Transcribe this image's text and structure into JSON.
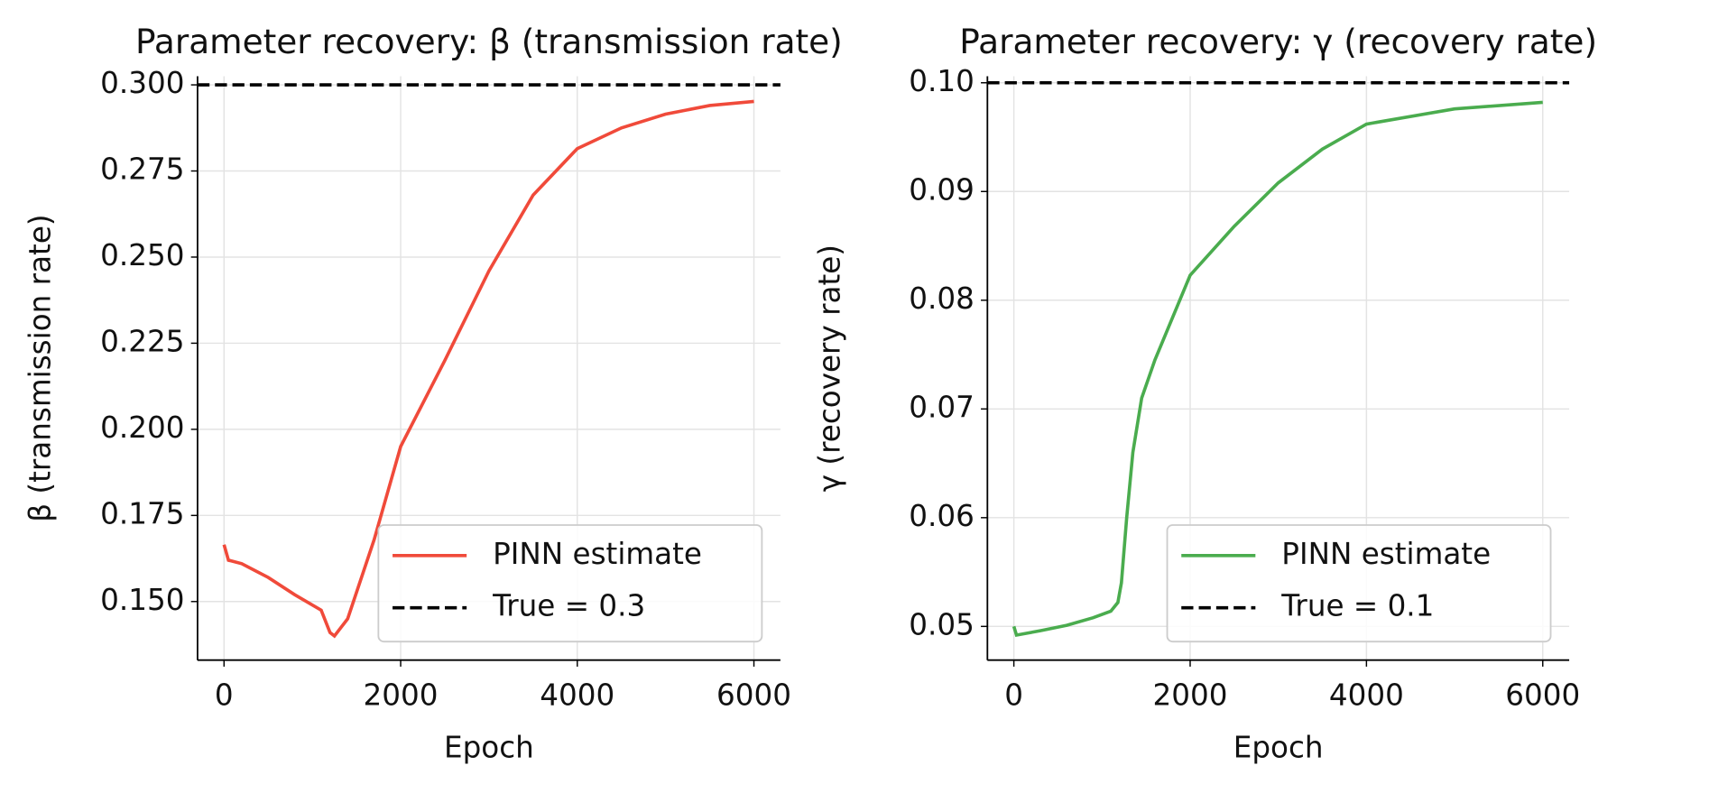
{
  "chart_data": [
    {
      "type": "line",
      "title": "Parameter recovery: β (transmission rate)",
      "x_label": "Epoch",
      "y_label": "β (transmission rate)",
      "xlim": [
        -300,
        6300
      ],
      "ylim": [
        0.133,
        0.3025
      ],
      "xticks": [
        0,
        2000,
        4000,
        6000
      ],
      "yticks": [
        {
          "value": 0.15,
          "label": "0.150"
        },
        {
          "value": 0.175,
          "label": "0.175"
        },
        {
          "value": 0.2,
          "label": "0.200"
        },
        {
          "value": 0.225,
          "label": "0.225"
        },
        {
          "value": 0.25,
          "label": "0.250"
        },
        {
          "value": 0.275,
          "label": "0.275"
        },
        {
          "value": 0.3,
          "label": "0.300"
        }
      ],
      "grid": true,
      "legend": "lower right",
      "series": [
        {
          "name": "PINN estimate",
          "color": "#f04a3a",
          "x": [
            0,
            50,
            200,
            500,
            800,
            1100,
            1200,
            1250,
            1400,
            1700,
            2000,
            2500,
            3000,
            3500,
            4000,
            4500,
            5000,
            5500,
            6000
          ],
          "values": [
            0.1665,
            0.162,
            0.161,
            0.157,
            0.152,
            0.1475,
            0.141,
            0.14,
            0.145,
            0.168,
            0.195,
            0.22,
            0.246,
            0.268,
            0.2815,
            0.2875,
            0.2915,
            0.294,
            0.2952
          ]
        }
      ],
      "reference_line": {
        "label": "True = 0.3",
        "value": 0.3,
        "color": "#000000"
      }
    },
    {
      "type": "line",
      "title": "Parameter recovery: γ (recovery rate)",
      "x_label": "Epoch",
      "y_label": "γ (recovery rate)",
      "xlim": [
        -300,
        6300
      ],
      "ylim": [
        0.0469,
        0.1006
      ],
      "xticks": [
        0,
        2000,
        4000,
        6000
      ],
      "yticks": [
        0.05,
        0.06,
        0.07,
        0.08,
        0.09,
        {
          "value": 0.1,
          "label": "0.10"
        }
      ],
      "grid": true,
      "legend": "lower right",
      "series": [
        {
          "name": "PINN estimate",
          "color": "#4aac4e",
          "x": [
            0,
            30,
            300,
            600,
            900,
            1100,
            1180,
            1220,
            1280,
            1350,
            1450,
            1600,
            2000,
            2500,
            3000,
            3500,
            4000,
            5000,
            6000
          ],
          "values": [
            0.05,
            0.0492,
            0.0496,
            0.0501,
            0.0508,
            0.0514,
            0.0522,
            0.054,
            0.06,
            0.066,
            0.071,
            0.0745,
            0.0823,
            0.0868,
            0.0908,
            0.0939,
            0.0962,
            0.0976,
            0.0982
          ]
        }
      ],
      "reference_line": {
        "label": "True = 0.1",
        "value": 0.1,
        "color": "#000000"
      }
    }
  ]
}
